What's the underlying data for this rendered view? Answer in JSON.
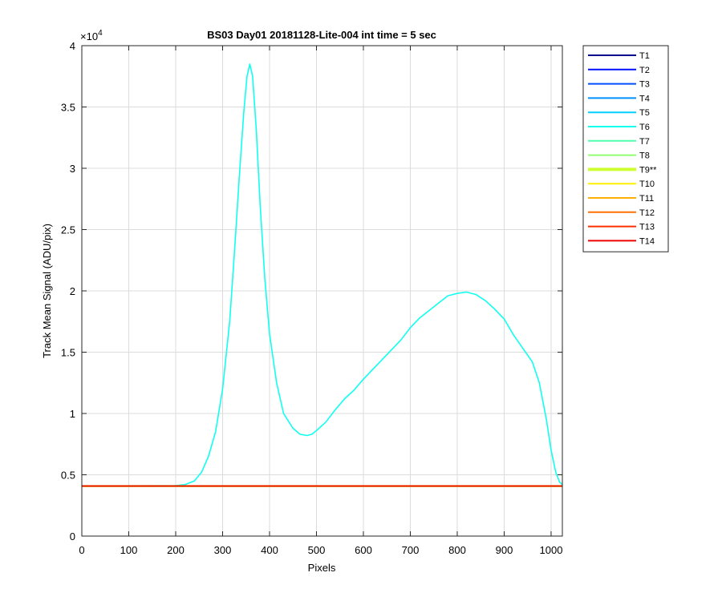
{
  "chart_data": {
    "type": "line",
    "title": "BS03 Day01 20181128-Lite-004 int time = 5 sec",
    "xlabel": "Pixels",
    "ylabel": "Track Mean Signal (ADU/pix)",
    "y_exponent_label": "×10",
    "y_exponent_power": "4",
    "xlim": [
      0,
      1024
    ],
    "ylim": [
      0,
      40000
    ],
    "x_ticks": [
      0,
      100,
      200,
      300,
      400,
      500,
      600,
      700,
      800,
      900,
      1000
    ],
    "x_tick_labels": [
      "0",
      "100",
      "200",
      "300",
      "400",
      "500",
      "600",
      "700",
      "800",
      "900",
      "1000"
    ],
    "y_ticks": [
      0,
      5000,
      10000,
      15000,
      20000,
      25000,
      30000,
      35000,
      40000
    ],
    "y_tick_labels": [
      "0",
      "0.5",
      "1",
      "1.5",
      "2",
      "2.5",
      "3",
      "3.5",
      "4"
    ],
    "grid": true,
    "legend_position": "outside-top-right",
    "series": [
      {
        "name": "T1",
        "color": "#00008f",
        "points": [
          [
            0,
            4080
          ],
          [
            1024,
            4080
          ]
        ]
      },
      {
        "name": "T2",
        "color": "#0010ff",
        "points": [
          [
            0,
            4080
          ],
          [
            1024,
            4080
          ]
        ]
      },
      {
        "name": "T3",
        "color": "#0050ff",
        "points": [
          [
            0,
            4080
          ],
          [
            1024,
            4080
          ]
        ]
      },
      {
        "name": "T4",
        "color": "#0090ff",
        "points": [
          [
            0,
            4080
          ],
          [
            1024,
            4080
          ]
        ]
      },
      {
        "name": "T5",
        "color": "#00cfff",
        "points": [
          [
            0,
            4080
          ],
          [
            1024,
            4080
          ]
        ]
      },
      {
        "name": "T6",
        "color": "#10ffef",
        "points": [
          [
            0,
            4100
          ],
          [
            100,
            4100
          ],
          [
            200,
            4120
          ],
          [
            220,
            4200
          ],
          [
            240,
            4500
          ],
          [
            255,
            5200
          ],
          [
            270,
            6500
          ],
          [
            285,
            8500
          ],
          [
            300,
            12000
          ],
          [
            315,
            17500
          ],
          [
            325,
            23000
          ],
          [
            335,
            29000
          ],
          [
            345,
            34500
          ],
          [
            352,
            37500
          ],
          [
            358,
            38500
          ],
          [
            364,
            37500
          ],
          [
            372,
            33000
          ],
          [
            380,
            27000
          ],
          [
            390,
            21000
          ],
          [
            400,
            16500
          ],
          [
            415,
            12500
          ],
          [
            430,
            10000
          ],
          [
            450,
            8800
          ],
          [
            465,
            8300
          ],
          [
            480,
            8200
          ],
          [
            490,
            8300
          ],
          [
            500,
            8600
          ],
          [
            520,
            9300
          ],
          [
            540,
            10300
          ],
          [
            560,
            11200
          ],
          [
            580,
            11900
          ],
          [
            600,
            12800
          ],
          [
            620,
            13600
          ],
          [
            640,
            14400
          ],
          [
            660,
            15200
          ],
          [
            680,
            16000
          ],
          [
            700,
            17000
          ],
          [
            720,
            17800
          ],
          [
            740,
            18400
          ],
          [
            760,
            19000
          ],
          [
            780,
            19600
          ],
          [
            800,
            19800
          ],
          [
            820,
            19900
          ],
          [
            840,
            19700
          ],
          [
            860,
            19200
          ],
          [
            880,
            18500
          ],
          [
            900,
            17700
          ],
          [
            920,
            16400
          ],
          [
            940,
            15300
          ],
          [
            960,
            14200
          ],
          [
            975,
            12500
          ],
          [
            990,
            9500
          ],
          [
            1000,
            7000
          ],
          [
            1010,
            5200
          ],
          [
            1018,
            4400
          ],
          [
            1024,
            4200
          ]
        ]
      },
      {
        "name": "T7",
        "color": "#50ffaf",
        "points": [
          [
            0,
            4080
          ],
          [
            1024,
            4080
          ]
        ]
      },
      {
        "name": "T8",
        "color": "#90ff70",
        "points": [
          [
            0,
            4080
          ],
          [
            1024,
            4080
          ]
        ]
      },
      {
        "name": "T9**",
        "color": "#cfff30",
        "bold": true,
        "points": [
          [
            0,
            4080
          ],
          [
            1024,
            4080
          ]
        ]
      },
      {
        "name": "T10",
        "color": "#ffef00",
        "points": [
          [
            0,
            4080
          ],
          [
            1024,
            4080
          ]
        ]
      },
      {
        "name": "T11",
        "color": "#ffaf00",
        "points": [
          [
            0,
            4080
          ],
          [
            1024,
            4080
          ]
        ]
      },
      {
        "name": "T12",
        "color": "#ff7000",
        "points": [
          [
            0,
            4080
          ],
          [
            1024,
            4080
          ]
        ]
      },
      {
        "name": "T13",
        "color": "#ff3000",
        "points": [
          [
            0,
            4080
          ],
          [
            1024,
            4080
          ]
        ]
      },
      {
        "name": "T14",
        "color": "#ef0000",
        "points": [
          [
            0,
            4080
          ],
          [
            1024,
            4080
          ]
        ]
      }
    ]
  }
}
